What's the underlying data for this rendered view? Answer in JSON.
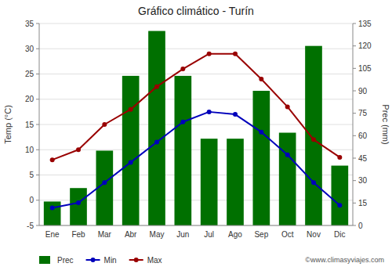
{
  "chart_data": {
    "type": "combo",
    "title": "Gráfico climático - Turín",
    "categories": [
      "Ene",
      "Feb",
      "Mar",
      "Abr",
      "May",
      "Jun",
      "Jul",
      "Ago",
      "Sep",
      "Oct",
      "Nov",
      "Dic"
    ],
    "series": [
      {
        "name": "Prec",
        "type": "bar",
        "axis": "y2",
        "color": "#007000",
        "values": [
          16,
          25,
          50,
          100,
          130,
          100,
          58,
          58,
          90,
          62,
          120,
          40
        ]
      },
      {
        "name": "Min",
        "type": "line",
        "color": "#0000bb",
        "marker": "circle",
        "values": [
          -1.5,
          -0.5,
          3.5,
          7.5,
          11.5,
          15.5,
          17.5,
          17,
          13.5,
          9,
          3.5,
          -1
        ]
      },
      {
        "name": "Max",
        "type": "line",
        "color": "#990000",
        "marker": "circle",
        "values": [
          8,
          10,
          15,
          18,
          22.5,
          26,
          29,
          29,
          24,
          18.5,
          12,
          8.5
        ]
      }
    ],
    "ylim": [
      -5,
      35
    ],
    "yticks": [
      -5,
      0,
      5,
      10,
      15,
      20,
      25,
      30,
      35
    ],
    "y2lim": [
      0,
      135
    ],
    "y2ticks": [
      0,
      15,
      30,
      45,
      60,
      75,
      90,
      105,
      120,
      135
    ],
    "ylabel": "Temp (°C)",
    "y2label": "Prec (mm)",
    "grid": true,
    "legend": "bottom",
    "annotations": [
      "©www.climasyviajes.com"
    ]
  }
}
